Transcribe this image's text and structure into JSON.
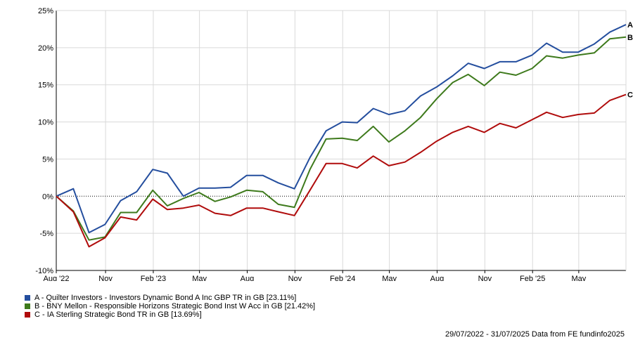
{
  "chart_data": {
    "type": "line",
    "y_ticks": [
      "25%",
      "20%",
      "15%",
      "10%",
      "5%",
      "0%",
      "-5%",
      "-10%"
    ],
    "ylim": [
      -10,
      25
    ],
    "x_ticks": [
      "Aug '22",
      "Nov",
      "Feb '23",
      "May",
      "Aug",
      "Nov",
      "Feb '24",
      "May",
      "Aug",
      "Nov",
      "Feb '25",
      "May"
    ],
    "grid": true,
    "x": [
      "2022-07-29",
      "2022-08-31",
      "2022-09-30",
      "2022-10-31",
      "2022-11-30",
      "2022-12-31",
      "2023-01-31",
      "2023-02-28",
      "2023-03-31",
      "2023-04-30",
      "2023-05-31",
      "2023-06-30",
      "2023-07-31",
      "2023-08-31",
      "2023-09-30",
      "2023-10-31",
      "2023-11-30",
      "2023-12-31",
      "2024-01-31",
      "2024-02-29",
      "2024-03-31",
      "2024-04-30",
      "2024-05-31",
      "2024-06-30",
      "2024-07-31",
      "2024-08-31",
      "2024-09-30",
      "2024-10-31",
      "2024-11-30",
      "2024-12-31",
      "2025-01-31",
      "2025-02-28",
      "2025-03-31",
      "2025-04-30",
      "2025-05-31",
      "2025-06-30",
      "2025-07-31"
    ],
    "series": [
      {
        "name": "A",
        "color": "#244e9e",
        "values": [
          0.0,
          1.0,
          -4.9,
          -3.8,
          -0.6,
          0.6,
          3.6,
          3.1,
          0.0,
          1.1,
          1.1,
          1.2,
          2.8,
          2.8,
          1.8,
          1.0,
          5.2,
          8.8,
          10.0,
          9.9,
          11.8,
          11.0,
          11.5,
          13.5,
          14.7,
          16.2,
          17.9,
          17.2,
          18.1,
          18.1,
          19.0,
          20.6,
          19.4,
          19.4,
          20.5,
          22.1,
          23.11
        ]
      },
      {
        "name": "B",
        "color": "#3e7a1c",
        "values": [
          0.0,
          -2.0,
          -5.9,
          -5.5,
          -2.2,
          -2.2,
          0.8,
          -1.3,
          -0.3,
          0.5,
          -0.7,
          -0.1,
          0.8,
          0.6,
          -1.1,
          -1.5,
          3.6,
          7.7,
          7.8,
          7.5,
          9.4,
          7.3,
          8.8,
          10.6,
          13.1,
          15.3,
          16.4,
          14.9,
          16.7,
          16.3,
          17.2,
          18.9,
          18.6,
          19.0,
          19.3,
          21.2,
          21.42
        ]
      },
      {
        "name": "C",
        "color": "#b00c0c",
        "values": [
          0.0,
          -2.1,
          -6.8,
          -5.6,
          -2.8,
          -3.2,
          -0.4,
          -1.8,
          -1.6,
          -1.2,
          -2.3,
          -2.6,
          -1.6,
          -1.6,
          -2.1,
          -2.6,
          0.8,
          4.4,
          4.4,
          3.8,
          5.4,
          4.1,
          4.6,
          5.9,
          7.4,
          8.6,
          9.4,
          8.6,
          9.8,
          9.2,
          10.3,
          11.3,
          10.6,
          11.0,
          11.2,
          12.9,
          13.69
        ]
      }
    ],
    "end_labels": [
      "A",
      "B",
      "C"
    ],
    "legend": [
      {
        "label": "A - Quilter Investors - Investors Dynamic Bond A Inc GBP TR in GB [23.11%]",
        "color": "#244e9e"
      },
      {
        "label": "B - BNY Mellon - Responsible Horizons Strategic Bond Inst W Acc in GB [21.42%]",
        "color": "#3e7a1c"
      },
      {
        "label": "C - IA Sterling Strategic Bond TR in GB [13.69%]",
        "color": "#b00c0c"
      }
    ],
    "legend_placement": "bottom-left"
  },
  "footer": "29/07/2022 - 31/07/2025 Data from FE fundinfo2025"
}
